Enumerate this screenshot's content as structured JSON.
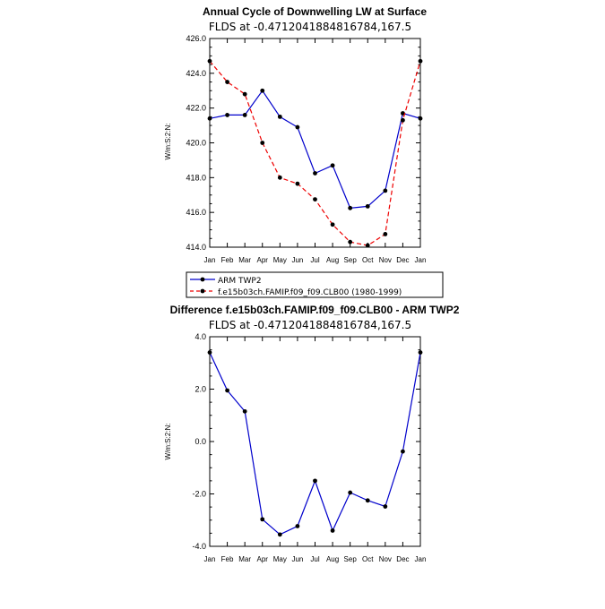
{
  "chart_data": [
    {
      "type": "line",
      "title": "Annual Cycle of Downwelling LW at Surface",
      "subtitle": "FLDS at -0.4712041884816784,167.5",
      "ylabel": "W/m:S:2:N:",
      "xlabel": "",
      "categories": [
        "Jan",
        "Feb",
        "Mar",
        "Apr",
        "May",
        "Jun",
        "Jul",
        "Aug",
        "Sep",
        "Oct",
        "Nov",
        "Dec",
        "Jan"
      ],
      "ylim": [
        414.0,
        426.0
      ],
      "yticks": [
        "414.0",
        "416.0",
        "418.0",
        "420.0",
        "422.0",
        "424.0",
        "426.0"
      ],
      "grid": false,
      "legend_position": "below",
      "series": [
        {
          "name": "ARM TWP2",
          "color": "#0000cc",
          "dash": "solid",
          "values": [
            421.4,
            421.6,
            421.6,
            423.0,
            421.5,
            420.9,
            418.25,
            418.7,
            416.25,
            416.35,
            417.25,
            421.7,
            421.4
          ]
        },
        {
          "name": "f.e15b03ch.FAMIP.f09_f09.CLB00 (1980-1999)",
          "color": "#ee0000",
          "dash": "dashed",
          "values": [
            424.7,
            423.5,
            422.8,
            420.0,
            418.0,
            417.65,
            416.75,
            415.3,
            414.3,
            414.1,
            414.75,
            421.3,
            424.7
          ]
        }
      ]
    },
    {
      "type": "line",
      "title": "Difference f.e15b03ch.FAMIP.f09_f09.CLB00 - ARM TWP2",
      "subtitle": "FLDS at -0.4712041884816784,167.5",
      "ylabel": "W/m:S:2:N:",
      "xlabel": "",
      "categories": [
        "Jan",
        "Feb",
        "Mar",
        "Apr",
        "May",
        "Jun",
        "Jul",
        "Aug",
        "Sep",
        "Oct",
        "Nov",
        "Dec",
        "Jan"
      ],
      "ylim": [
        -4.0,
        4.0
      ],
      "yticks": [
        "-4.0",
        "-2.0",
        "0.0",
        "2.0",
        "4.0"
      ],
      "grid": false,
      "series": [
        {
          "color": "#0000cc",
          "dash": "solid",
          "values": [
            3.4,
            1.95,
            1.15,
            -2.97,
            -3.55,
            -3.23,
            -1.5,
            -3.4,
            -1.95,
            -2.25,
            -2.48,
            -0.38,
            3.4
          ]
        }
      ]
    }
  ]
}
